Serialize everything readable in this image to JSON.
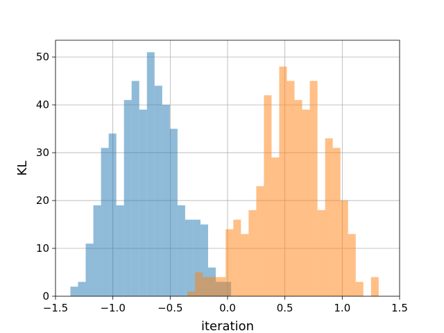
{
  "chart_data": {
    "type": "histogram",
    "title": "",
    "xlabel": "iteration",
    "ylabel": "KL",
    "xlim": [
      -1.5,
      1.5
    ],
    "ylim": [
      0,
      53.5
    ],
    "xticks": [
      -1.5,
      -1.0,
      -0.5,
      0.0,
      0.5,
      1.0,
      1.5
    ],
    "xtick_labels": [
      "−1.5",
      "−1.0",
      "−0.5",
      "0.0",
      "0.5",
      "1.0",
      "1.5"
    ],
    "yticks": [
      0,
      10,
      20,
      30,
      40,
      50
    ],
    "ytick_labels": [
      "0",
      "10",
      "20",
      "30",
      "40",
      "50"
    ],
    "grid": true,
    "series": [
      {
        "color": "#1f77b4",
        "opacity": 0.5,
        "bin_start": -1.37,
        "bin_width": 0.0667,
        "values": [
          2,
          3,
          11,
          19,
          31,
          34,
          19,
          41,
          45,
          39,
          51,
          44,
          40,
          35,
          19,
          16,
          16,
          15,
          6,
          3,
          3
        ]
      },
      {
        "color": "#ff7f0e",
        "opacity": 0.5,
        "bin_start": -0.35,
        "bin_width": 0.0667,
        "values": [
          1,
          5,
          4,
          4,
          4,
          14,
          16,
          13,
          18,
          23,
          42,
          29,
          48,
          45,
          41,
          39,
          45,
          18,
          33,
          31,
          20,
          13,
          3,
          0,
          4
        ]
      }
    ]
  }
}
